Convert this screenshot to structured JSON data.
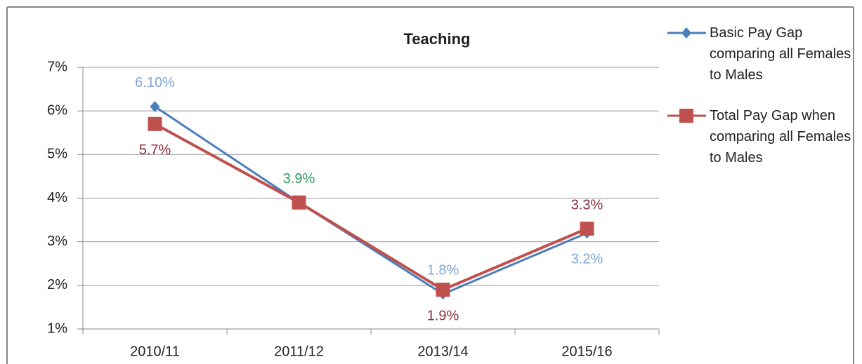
{
  "chart_data": {
    "type": "line",
    "title": "Teaching",
    "categories": [
      "2010/11",
      "2011/12",
      "2013/14",
      "2015/16"
    ],
    "series": [
      {
        "name": "Basic Pay Gap comparing all Females to Males",
        "color": "#4a7ebb",
        "marker": "diamond",
        "values": [
          6.1,
          3.9,
          1.8,
          3.2
        ],
        "value_labels": [
          "6.10%",
          "3.9%",
          "1.8%",
          "3.2%"
        ],
        "value_label_colors": [
          "#7ea6d6",
          "#2e9a5a",
          "#7ea6d6",
          "#7ea6d6"
        ],
        "value_label_positions": [
          "above",
          "above",
          "above",
          "below"
        ]
      },
      {
        "name": "Total Pay Gap when comparing all Females to Males",
        "color": "#c0504d",
        "marker": "square",
        "values": [
          5.7,
          3.9,
          1.9,
          3.3
        ],
        "value_labels": [
          "5.7%",
          null,
          "1.9%",
          "3.3%"
        ],
        "value_label_colors": [
          "#8b2d3a",
          null,
          "#8b2d3a",
          "#8b2d3a"
        ],
        "value_label_positions": [
          "below",
          null,
          "below",
          "above"
        ]
      }
    ],
    "ylim": [
      1,
      7
    ],
    "yticks": [
      {
        "value": 1,
        "label": "1%"
      },
      {
        "value": 2,
        "label": "2%"
      },
      {
        "value": 3,
        "label": "3%"
      },
      {
        "value": 4,
        "label": "4%"
      },
      {
        "value": 5,
        "label": "5%"
      },
      {
        "value": 6,
        "label": "6%"
      },
      {
        "value": 7,
        "label": "7%"
      }
    ],
    "grid": true,
    "legend": "right"
  }
}
